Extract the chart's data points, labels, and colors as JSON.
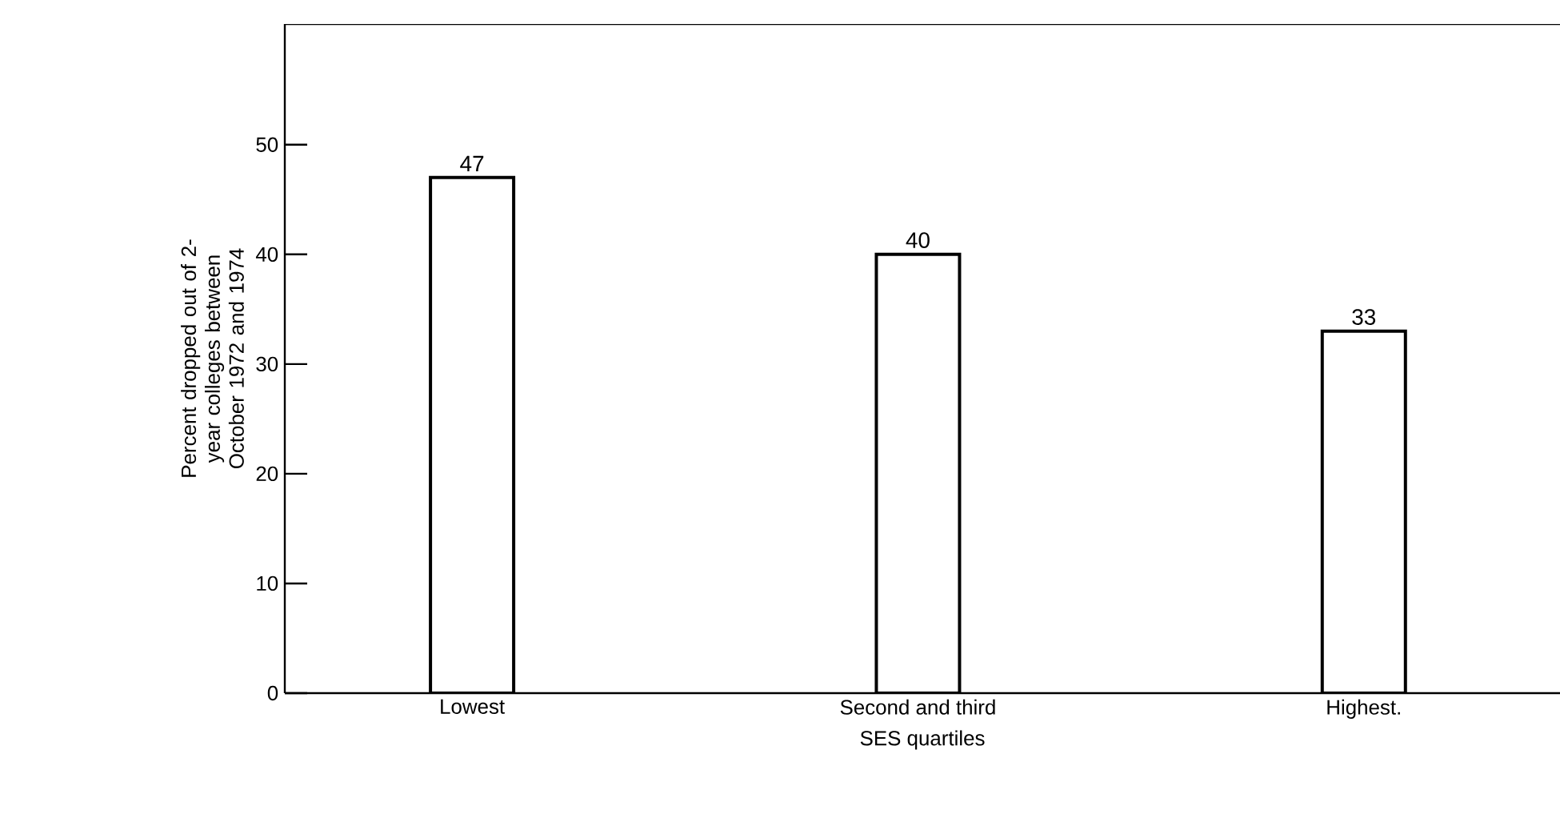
{
  "chart_data": {
    "type": "bar",
    "xlabel": "SES quartiles",
    "ylabel": "Percent dropped out of 2-year colleges between October 1972 and 1974",
    "categories": [
      "Lowest",
      "Second and third",
      "Highest."
    ],
    "values": [
      47,
      40,
      33
    ],
    "color": "#ffffff",
    "ylim": [
      0,
      61
    ],
    "yticks": [
      0,
      10,
      20,
      30,
      40,
      50
    ],
    "data_labels": true,
    "grid": false
  }
}
